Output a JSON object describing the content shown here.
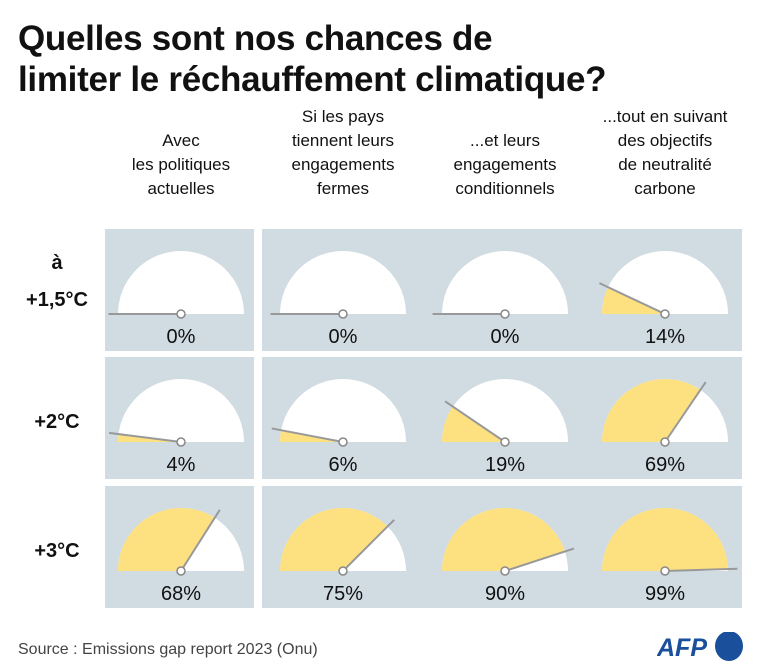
{
  "title": "Quelles sont nos chances de limiter le réchauffement climatique?",
  "source": "Source : Emissions gap report 2023 (Onu)",
  "logo": "AFP",
  "colors": {
    "panel": "#d0dbe2",
    "fill": "#fde07f",
    "gauge_bg": "#ffffff",
    "needle": "#999999",
    "logo": "#1a4f9c"
  },
  "chart_data": {
    "type": "gauge-grid",
    "columns": [
      [
        "Avec",
        "les politiques",
        "actuelles"
      ],
      [
        "Si les pays",
        "tiennent leurs",
        "engagements",
        "fermes"
      ],
      [
        "...et leurs",
        "engagements",
        "conditionnels"
      ],
      [
        "...tout en suivant",
        "des objectifs",
        "de neutralité",
        "carbone"
      ]
    ],
    "rows": [
      {
        "label": [
          "à",
          "+1,5°C"
        ],
        "values": [
          0,
          0,
          0,
          14
        ]
      },
      {
        "label": [
          "+2°C"
        ],
        "values": [
          4,
          6,
          19,
          69
        ]
      },
      {
        "label": [
          "+3°C"
        ],
        "values": [
          68,
          75,
          90,
          99
        ]
      }
    ],
    "unit": "%"
  }
}
